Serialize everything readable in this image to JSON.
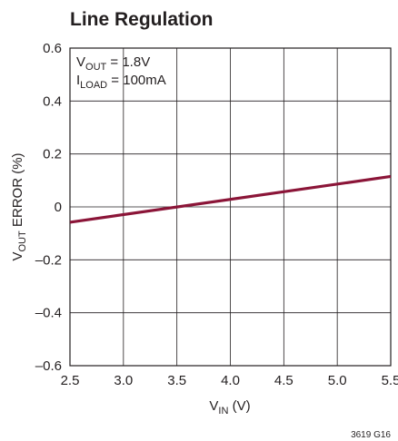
{
  "chart_data": {
    "type": "line",
    "title": "Line Regulation",
    "xlabel": {
      "main": "V",
      "sub": "IN",
      "rest": " (V)"
    },
    "ylabel": {
      "main": "V",
      "sub": "OUT",
      "rest": " ERROR (%)"
    },
    "xlim": [
      2.5,
      5.5
    ],
    "ylim": [
      -0.6,
      0.6
    ],
    "x_ticks": [
      "2.5",
      "3.0",
      "3.5",
      "4.0",
      "4.5",
      "5.0",
      "5.5"
    ],
    "y_ticks": [
      "0.6",
      "0.4",
      "0.2",
      "0",
      "–0.2",
      "–0.4",
      "–0.6"
    ],
    "grid": true,
    "annotations": {
      "line1": {
        "main": "V",
        "sub": "OUT",
        "rest": " = 1.8V"
      },
      "line2": {
        "main": "I",
        "sub": "LOAD",
        "rest": " = 100mA"
      }
    },
    "series": [
      {
        "color": "#8b1538",
        "x": [
          2.5,
          5.5
        ],
        "y": [
          -0.058,
          0.115
        ]
      }
    ],
    "figure_code": "3619 G16"
  }
}
